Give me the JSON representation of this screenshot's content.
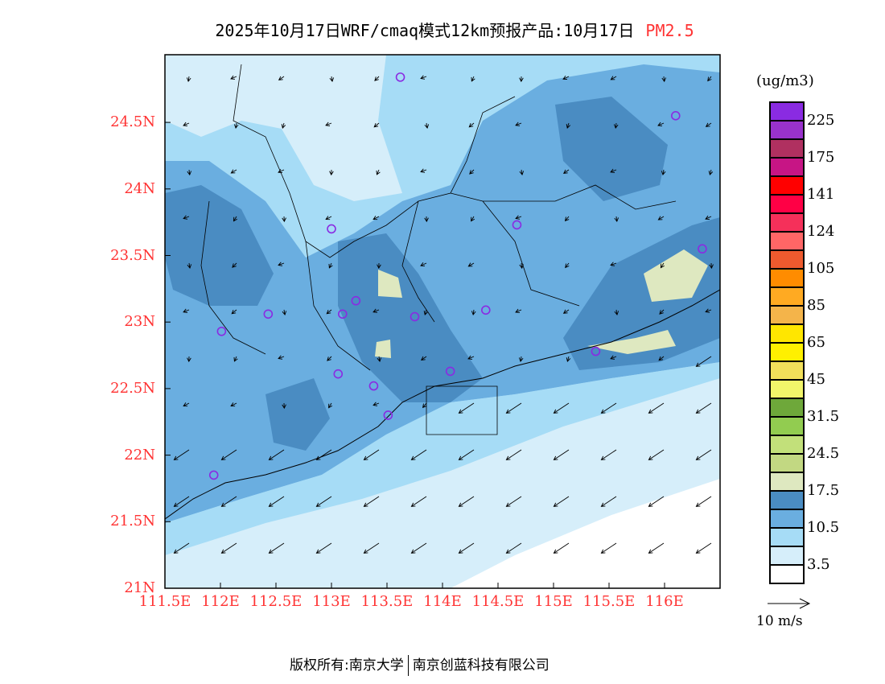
{
  "title": {
    "main": "2025年10月17日WRF/cmaq模式12km预报产品:10月17日",
    "pollutant": "PM2.5"
  },
  "axes": {
    "lat_labels": [
      "24.5N",
      "24N",
      "23.5N",
      "23N",
      "22.5N",
      "22N",
      "21.5N",
      "21N"
    ],
    "lat_values": [
      24.5,
      24,
      23.5,
      23,
      22.5,
      22,
      21.5,
      21
    ],
    "lon_labels": [
      "111.5E",
      "112E",
      "112.5E",
      "113E",
      "113.5E",
      "114E",
      "114.5E",
      "115E",
      "115.5E",
      "116E"
    ],
    "lon_values": [
      111.5,
      112,
      112.5,
      113,
      113.5,
      114,
      114.5,
      115,
      115.5,
      116
    ],
    "lon_range": [
      111.5,
      116.5
    ],
    "lat_range": [
      21,
      25
    ]
  },
  "legend": {
    "unit": "(ug/m3)",
    "colors": [
      "#8a2be2",
      "#9932cc",
      "#b03060",
      "#c71585",
      "#ff0000",
      "#ff0045",
      "#f5305a",
      "#ff6666",
      "#ee5a2e",
      "#ff8c00",
      "#ffaa22",
      "#f4b44a",
      "#ffe600",
      "#fff000",
      "#f2e05a",
      "#f2f56a",
      "#6ea83a",
      "#92cc50",
      "#c2e07a",
      "#c2d882",
      "#dee8c0",
      "#4a8cc2",
      "#6aaee0",
      "#a6dcf6",
      "#d6eefa",
      "#ffffff"
    ],
    "labels": [
      "225",
      "175",
      "141",
      "124",
      "105",
      "85",
      "65",
      "45",
      "31.5",
      "24.5",
      "17.5",
      "10.5",
      "3.5"
    ],
    "wind_reference": "10 m/s"
  },
  "stations": [
    [
      113.62,
      24.84
    ],
    [
      116.1,
      24.55
    ],
    [
      113.0,
      23.7
    ],
    [
      114.67,
      23.73
    ],
    [
      116.34,
      23.55
    ],
    [
      112.43,
      23.06
    ],
    [
      112.01,
      22.93
    ],
    [
      113.1,
      23.06
    ],
    [
      113.22,
      23.16
    ],
    [
      113.75,
      23.04
    ],
    [
      114.39,
      23.09
    ],
    [
      115.38,
      22.78
    ],
    [
      113.06,
      22.61
    ],
    [
      113.38,
      22.52
    ],
    [
      114.07,
      22.63
    ],
    [
      113.51,
      22.3
    ],
    [
      111.94,
      21.85
    ]
  ],
  "footer": {
    "copyright": "版权所有:南京大学",
    "company": "南京创蓝科技有限公司"
  }
}
